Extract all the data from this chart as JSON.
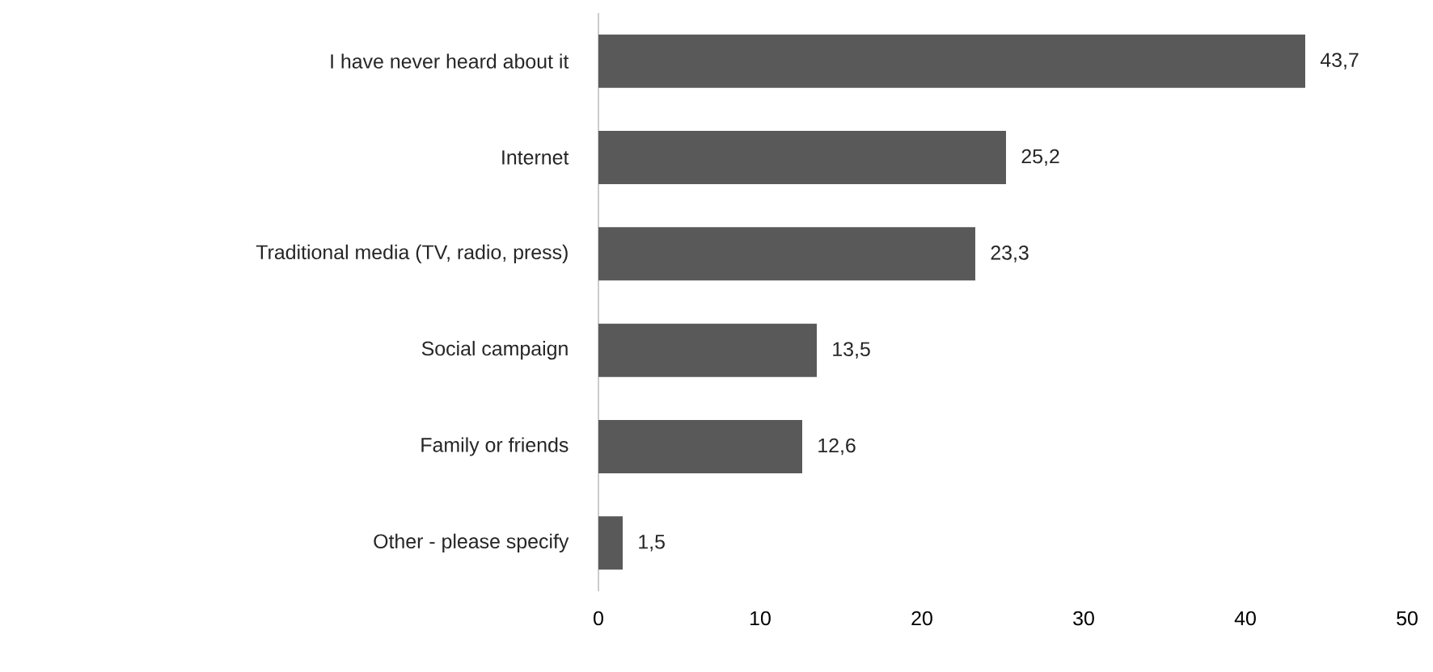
{
  "chart_data": {
    "type": "bar",
    "orientation": "horizontal",
    "categories": [
      "I have never heard about it",
      "Internet",
      "Traditional media (TV, radio, press)",
      "Social campaign",
      "Family or friends",
      "Other - please specify"
    ],
    "values": [
      43.7,
      25.2,
      23.3,
      13.5,
      12.6,
      1.5
    ],
    "value_labels": [
      "43,7",
      "25,2",
      "23,3",
      "13,5",
      "12,6",
      "1,5"
    ],
    "color": "#595959",
    "xlim": [
      0,
      50
    ],
    "xticks": [
      0,
      10,
      20,
      30,
      40,
      50
    ]
  }
}
